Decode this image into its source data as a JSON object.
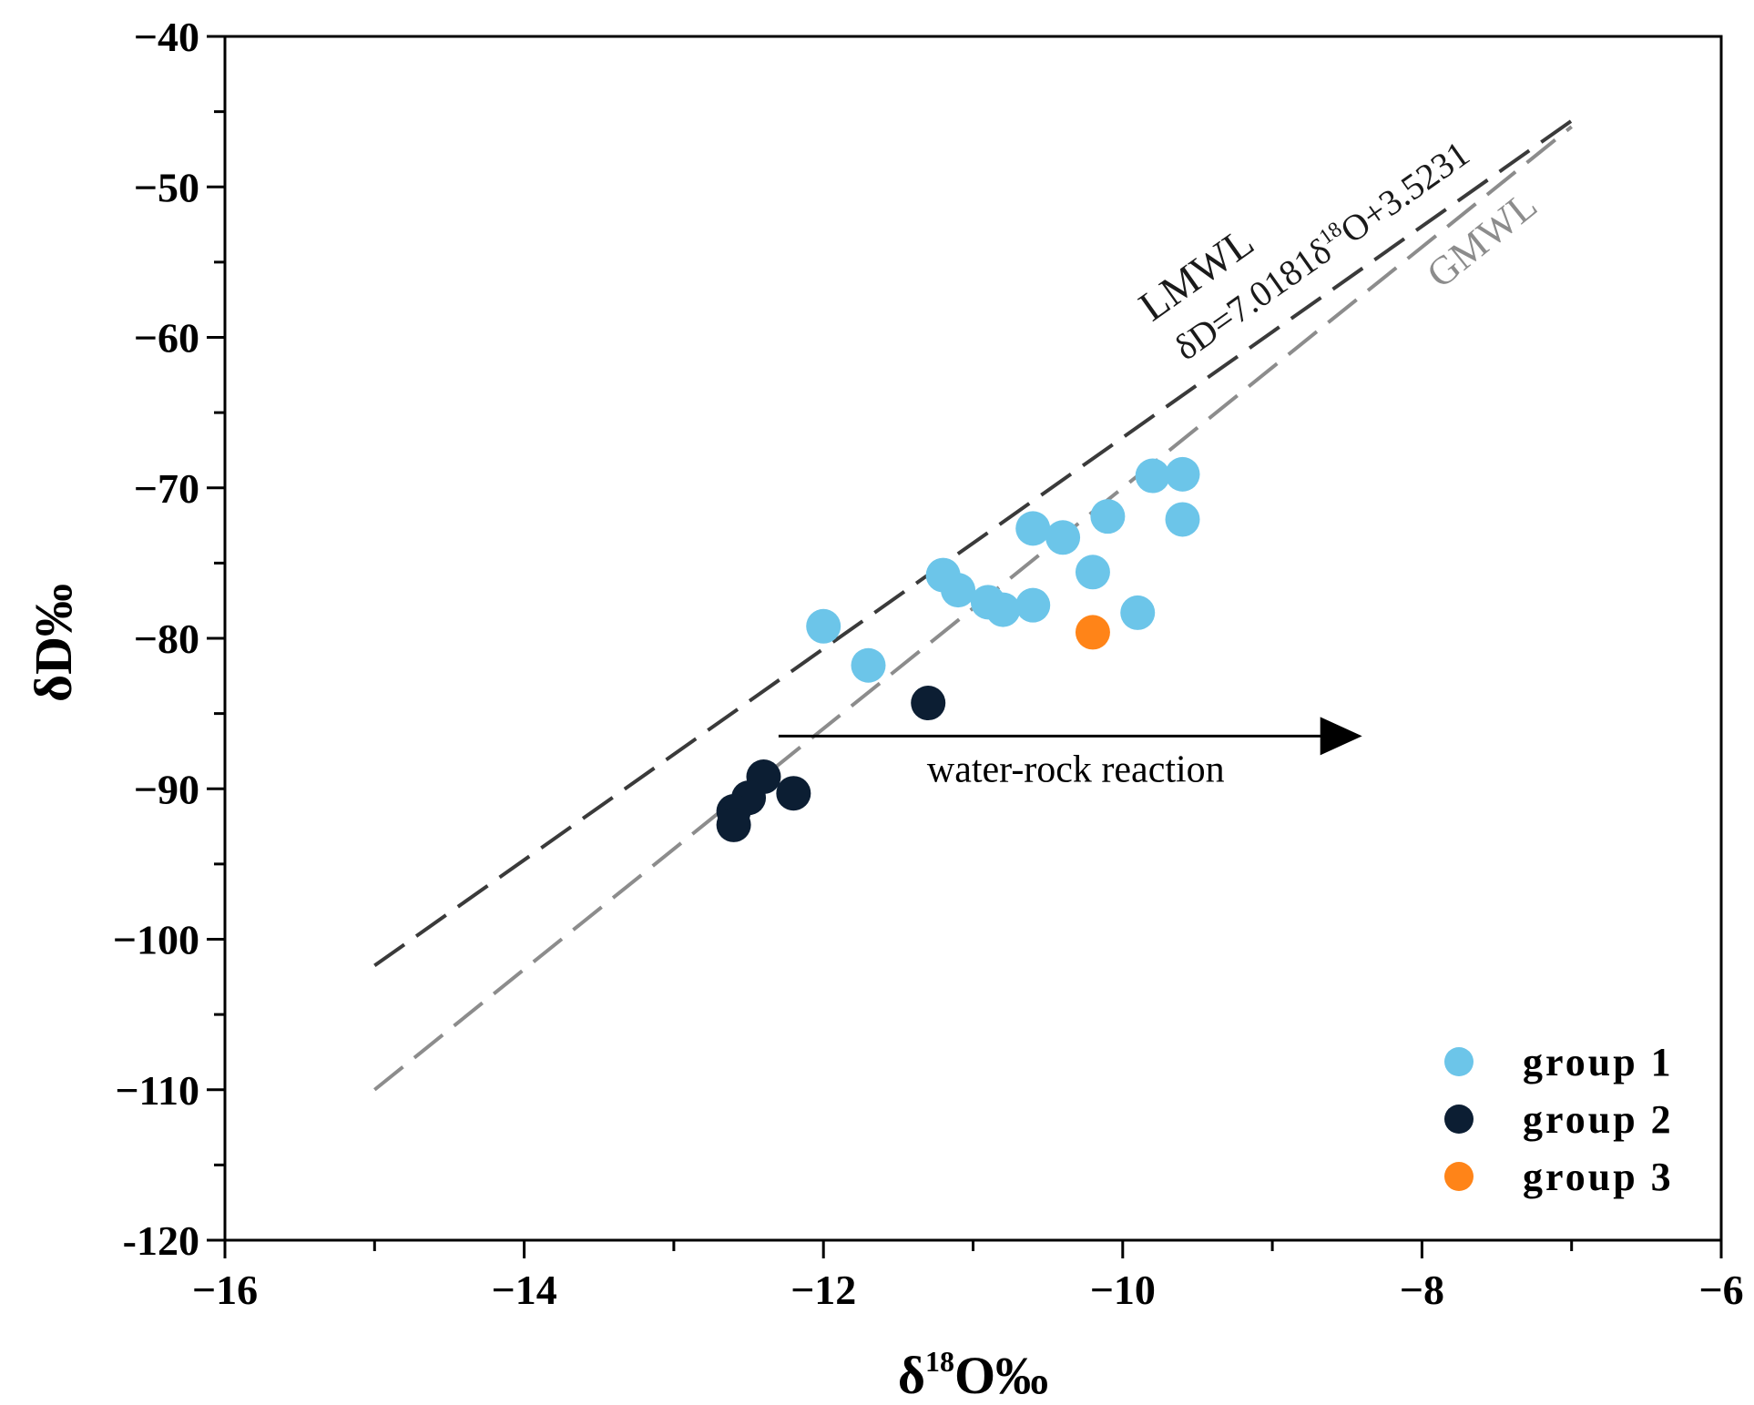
{
  "chart_data": {
    "type": "scatter",
    "xlabel": {
      "prefix": "δ",
      "sup": "18",
      "main": "O‰"
    },
    "ylabel": "δD‰",
    "xlim": [
      -16,
      -6
    ],
    "ylim": [
      -120,
      -40
    ],
    "x_ticks": [
      -16,
      -14,
      -12,
      -10,
      -8,
      -6
    ],
    "x_tick_labels": [
      "−16",
      "−14",
      "−12",
      "−10",
      "−8",
      "−6"
    ],
    "y_ticks": [
      -40,
      -50,
      -60,
      -70,
      -80,
      -90,
      -100,
      -110,
      -120
    ],
    "y_tick_labels": [
      "−40",
      "−50",
      "−60",
      "−70",
      "−80",
      "−90",
      "−100",
      "−110",
      "-120"
    ],
    "series": [
      {
        "name": "group 1",
        "color": "#6cc5e9",
        "points": [
          [
            -12.0,
            -79.2
          ],
          [
            -11.7,
            -81.8
          ],
          [
            -11.2,
            -75.8
          ],
          [
            -11.1,
            -76.8
          ],
          [
            -10.9,
            -77.6
          ],
          [
            -10.8,
            -78.1
          ],
          [
            -10.6,
            -72.7
          ],
          [
            -10.6,
            -77.8
          ],
          [
            -10.4,
            -73.3
          ],
          [
            -10.2,
            -75.6
          ],
          [
            -10.1,
            -71.9
          ],
          [
            -9.9,
            -78.3
          ],
          [
            -9.8,
            -69.2
          ],
          [
            -9.6,
            -69.1
          ],
          [
            -9.6,
            -72.1
          ]
        ]
      },
      {
        "name": "group 2",
        "color": "#0c1e33",
        "points": [
          [
            -11.3,
            -84.3
          ],
          [
            -12.2,
            -90.3
          ],
          [
            -12.4,
            -89.2
          ],
          [
            -12.5,
            -90.6
          ],
          [
            -12.6,
            -91.5
          ],
          [
            -12.6,
            -92.4
          ]
        ]
      },
      {
        "name": "group 3",
        "color": "#ff8418",
        "points": [
          [
            -10.2,
            -79.6
          ]
        ]
      }
    ],
    "reference_lines": [
      {
        "name": "LMWL",
        "equation": {
          "prefix": "δD=7.0181δ",
          "sup": "18",
          "suffix": "O+3.5231"
        },
        "slope": 7.0181,
        "intercept": 3.5231,
        "x_range": [
          -15,
          -7
        ],
        "color": "#3a3a3a"
      },
      {
        "name": "GMWL",
        "slope": 8,
        "intercept": 10,
        "x_range": [
          -15,
          -7
        ],
        "color": "#8c8c8c"
      }
    ],
    "annotations": [
      {
        "text": "water-rock reaction",
        "arrow_from": [
          -12.3,
          -86.5
        ],
        "arrow_to": [
          -8.4,
          -86.5
        ]
      }
    ],
    "legend_position": "bottom-right"
  }
}
